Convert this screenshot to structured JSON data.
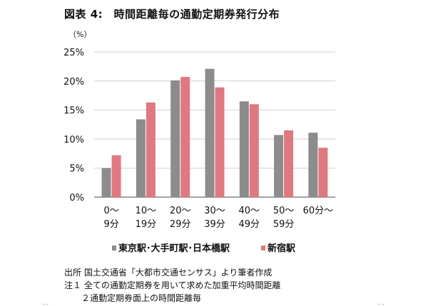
{
  "title": "図表 4:　時間距離毎の通勤定期券発行分布",
  "chart_data": {
    "type": "bar",
    "unit_label": "（%）",
    "y_ticks": [
      "25%",
      "20%",
      "15%",
      "10%",
      "5%",
      "0%"
    ],
    "ylim": [
      0,
      25
    ],
    "grid": true,
    "legend_position": "bottom",
    "categories": [
      [
        "0〜",
        "9分"
      ],
      [
        "10〜",
        "19分"
      ],
      [
        "20〜",
        "29分"
      ],
      [
        "30〜",
        "39分"
      ],
      [
        "40〜",
        "49分"
      ],
      [
        "50〜",
        "59分"
      ],
      [
        "60分〜",
        ""
      ]
    ],
    "series": [
      {
        "name": "東京駅･大手町駅･日本橋駅",
        "color": "#8c8c8c",
        "values": [
          5.0,
          13.4,
          20.1,
          22.1,
          16.5,
          10.7,
          11.1
        ]
      },
      {
        "name": "新宿駅",
        "color": "#e07880",
        "values": [
          7.2,
          16.3,
          20.7,
          18.9,
          16.0,
          11.5,
          8.5
        ]
      }
    ]
  },
  "notes": [
    "出所 国土交通省「大都市交通センサス」より筆者作成",
    "注１ 全ての通勤定期券を用いて求めた加重平均時間距離",
    "　　２通勤定期券面上の時間距離毎"
  ]
}
